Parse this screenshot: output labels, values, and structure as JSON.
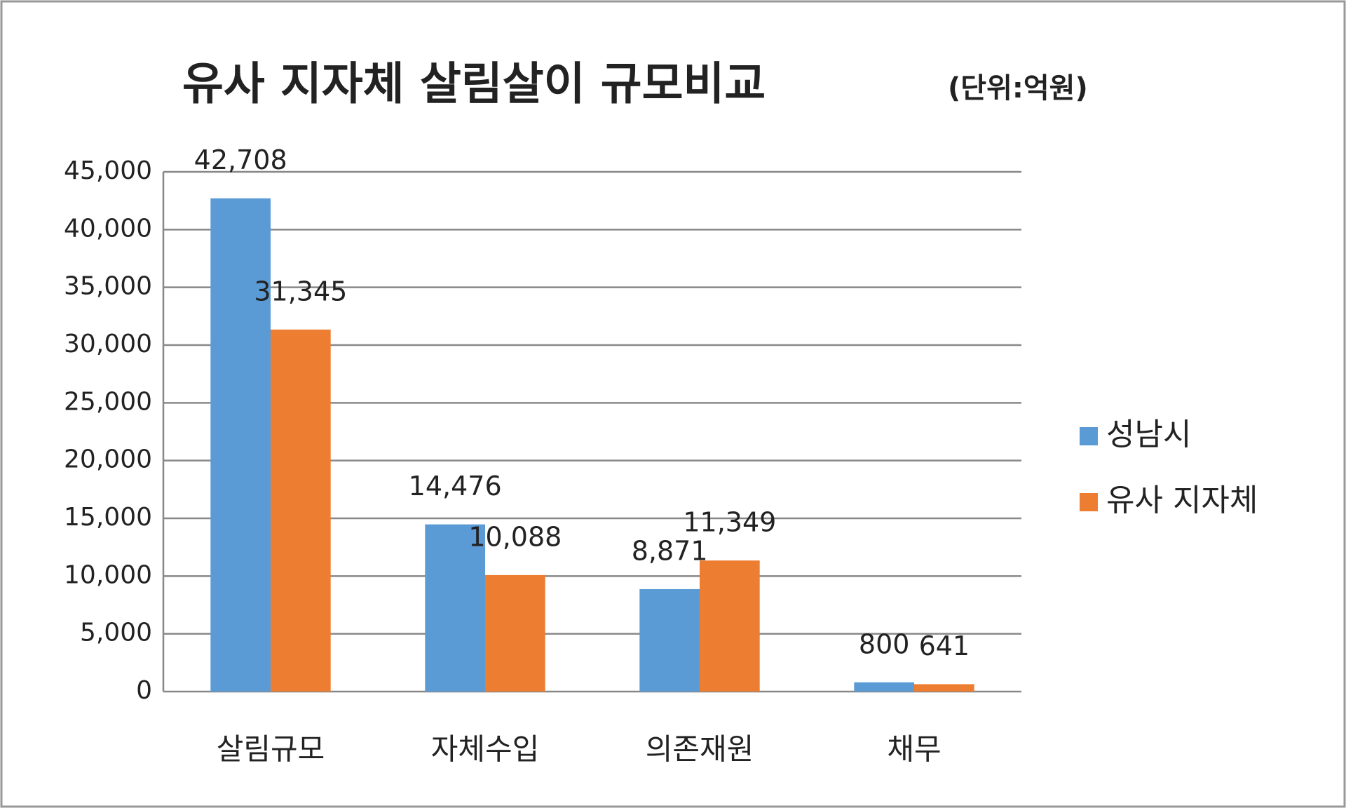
{
  "chart_data": {
    "type": "bar",
    "title": "유사 지자체 살림살이 규모비교",
    "subtitle": "(단위:억원)",
    "categories": [
      "살림규모",
      "자체수입",
      "의존재원",
      "채무"
    ],
    "series": [
      {
        "name": "성남시",
        "color": "#5b9bd5",
        "values": [
          42708,
          14476,
          8871,
          800
        ],
        "value_labels": [
          "42,708",
          "14,476",
          "8,871",
          "800"
        ]
      },
      {
        "name": "유사 지자체",
        "color": "#ed7d31",
        "values": [
          31345,
          10088,
          11349,
          641
        ],
        "value_labels": [
          "31,345",
          "10,088",
          "11,349",
          "641"
        ]
      }
    ],
    "ylim": [
      0,
      45000
    ],
    "yticks": [
      0,
      {
        "value": 5000,
        "label": "5,000"
      },
      {
        "value": 10000,
        "label": "10,000"
      },
      {
        "value": 15000,
        "label": "15,000"
      },
      {
        "value": 20000,
        "label": "20,000"
      },
      {
        "value": 25000,
        "label": "25,000"
      },
      {
        "value": 30000,
        "label": "30,000"
      },
      {
        "value": 35000,
        "label": "35,000"
      },
      {
        "value": 40000,
        "label": "40,000"
      },
      {
        "value": 45000,
        "label": "45,000"
      }
    ],
    "grid": true,
    "legend": "right"
  }
}
